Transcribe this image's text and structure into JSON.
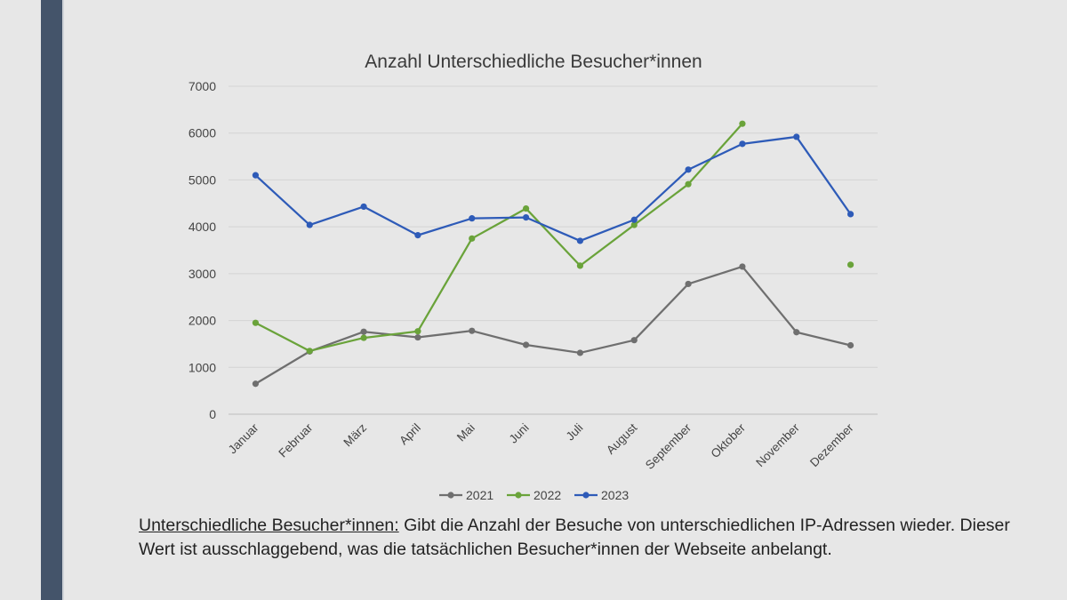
{
  "chart_data": {
    "type": "line",
    "title": "Anzahl Unterschiedliche Besucher*innen",
    "categories": [
      "Januar",
      "Februar",
      "März",
      "April",
      "Mai",
      "Juni",
      "Juli",
      "August",
      "September",
      "Oktober",
      "November",
      "Dezember"
    ],
    "series": [
      {
        "name": "2021",
        "color": "#6f6f6f",
        "values": [
          650,
          1340,
          1760,
          1640,
          1780,
          1480,
          1310,
          1580,
          2780,
          3150,
          1750,
          1470
        ]
      },
      {
        "name": "2022",
        "color": "#6aa33a",
        "values": [
          1950,
          1350,
          1630,
          1770,
          3750,
          4390,
          3170,
          4040,
          4910,
          6200,
          null,
          3190
        ]
      },
      {
        "name": "2023",
        "color": "#2e5bb8",
        "values": [
          5100,
          4040,
          4430,
          3820,
          4180,
          4200,
          3700,
          4150,
          5220,
          5770,
          5920,
          4270
        ]
      }
    ],
    "ylim": [
      0,
      7000
    ],
    "yticks": [
      0,
      1000,
      2000,
      3000,
      4000,
      5000,
      6000,
      7000
    ],
    "xlabel": "",
    "ylabel": "",
    "grid": true,
    "legend": "bottom"
  },
  "caption": {
    "term": "Unterschiedliche Besucher*innen:",
    "text": " Gibt die Anzahl der Besuche von unterschiedlichen IP-Adressen wieder. Dieser Wert ist ausschlaggebend, was die tatsächlichen Besucher*innen der Webseite anbelangt."
  }
}
